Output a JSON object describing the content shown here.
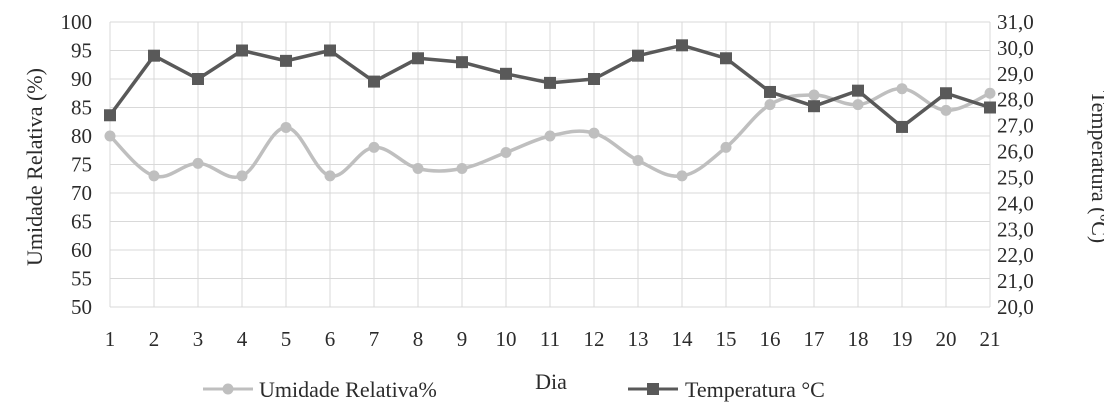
{
  "chart_data": {
    "type": "line",
    "title": "",
    "xlabel": "Dia",
    "ylabel_left": "Umidade Relativa (%)",
    "ylabel_right": "Temperatura (ºC)",
    "categories": [
      "1",
      "2",
      "3",
      "4",
      "5",
      "6",
      "7",
      "8",
      "9",
      "10",
      "11",
      "12",
      "13",
      "14",
      "15",
      "16",
      "17",
      "18",
      "19",
      "20",
      "21"
    ],
    "ylim_left": [
      50,
      100
    ],
    "ylim_right": [
      20.0,
      31.0
    ],
    "yticks_left": [
      "50",
      "55",
      "60",
      "65",
      "70",
      "75",
      "80",
      "85",
      "90",
      "95",
      "100"
    ],
    "yticks_right": [
      "20,0",
      "21,0",
      "22,0",
      "23,0",
      "24,0",
      "25,0",
      "26,0",
      "27,0",
      "28,0",
      "29,0",
      "30,0",
      "31,0"
    ],
    "grid": true,
    "legend_position": "bottom",
    "series": [
      {
        "name": "Umidade Relativa%",
        "axis": "left",
        "smooth": true,
        "color": "#bfbfbf",
        "marker": "circle",
        "values": [
          80,
          73,
          75.2,
          73,
          81.5,
          73,
          78,
          74.3,
          74.3,
          77.1,
          80,
          80.5,
          75.7,
          73,
          78,
          85.5,
          87.2,
          85.5,
          88.3,
          84.5,
          87.5
        ]
      },
      {
        "name": "Temperatura °C",
        "axis": "right",
        "smooth": false,
        "color": "#595959",
        "marker": "square",
        "values": [
          27.4,
          29.7,
          28.8,
          29.9,
          29.5,
          29.9,
          28.7,
          29.6,
          29.45,
          29.0,
          28.65,
          28.8,
          29.7,
          30.1,
          29.6,
          28.3,
          27.75,
          28.35,
          26.95,
          28.25,
          27.7
        ]
      }
    ]
  }
}
